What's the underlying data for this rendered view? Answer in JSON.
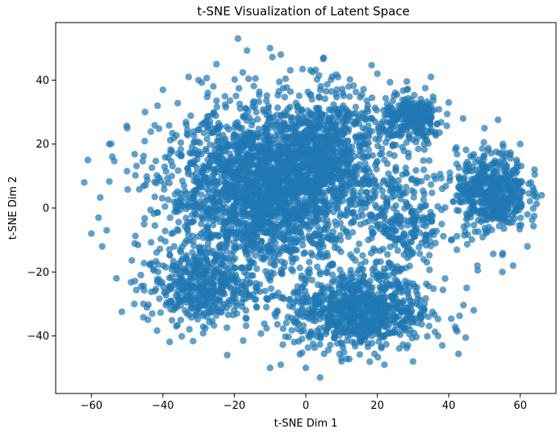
{
  "chart_data": {
    "type": "scatter",
    "title": "t-SNE Visualization of Latent Space",
    "xlabel": "t-SNE Dim 1",
    "ylabel": "t-SNE Dim 2",
    "xlim": [
      -70,
      70
    ],
    "ylim": [
      -58,
      58
    ],
    "xticks": [
      -60,
      -40,
      -20,
      0,
      20,
      40,
      60
    ],
    "yticks": [
      -40,
      -20,
      0,
      20,
      40
    ],
    "xtick_labels": [
      "−60",
      "−40",
      "−20",
      "0",
      "20",
      "40",
      "60"
    ],
    "ytick_labels": [
      "−40",
      "−20",
      "0",
      "20",
      "40"
    ],
    "grid": false,
    "legend": "none",
    "color": "#1f77b4",
    "alpha": 0.7,
    "point_count_estimate": 5000,
    "clusters": [
      {
        "center": [
          -12,
          5
        ],
        "spread": [
          20,
          18
        ],
        "weight": 0.42
      },
      {
        "center": [
          5,
          18
        ],
        "spread": [
          13,
          14
        ],
        "weight": 0.14
      },
      {
        "center": [
          15,
          -32
        ],
        "spread": [
          14,
          9
        ],
        "weight": 0.16
      },
      {
        "center": [
          -30,
          -25
        ],
        "spread": [
          11,
          8
        ],
        "weight": 0.08
      },
      {
        "center": [
          52,
          5
        ],
        "spread": [
          7,
          9
        ],
        "weight": 0.1
      },
      {
        "center": [
          30,
          28
        ],
        "spread": [
          6,
          5
        ],
        "weight": 0.05
      },
      {
        "center": [
          28,
          -5
        ],
        "spread": [
          9,
          12
        ],
        "weight": 0.05
      }
    ],
    "outliers": [
      [
        -19,
        53
      ],
      [
        -10,
        50
      ],
      [
        -7,
        48
      ],
      [
        35,
        41
      ],
      [
        20,
        42
      ],
      [
        5,
        47
      ],
      [
        -62,
        8
      ],
      [
        -61,
        15
      ],
      [
        -58,
        -3
      ],
      [
        -60,
        -8
      ],
      [
        66,
        4
      ],
      [
        64,
        12
      ],
      [
        60,
        20
      ],
      [
        62,
        -12
      ],
      [
        58,
        -18
      ],
      [
        55,
        -20
      ],
      [
        4,
        -53
      ],
      [
        -7,
        -49
      ],
      [
        22,
        -49
      ],
      [
        30,
        -48
      ],
      [
        -22,
        -46
      ],
      [
        -35,
        -35
      ],
      [
        45,
        -25
      ],
      [
        47,
        -32
      ],
      [
        40,
        33
      ],
      [
        44,
        28
      ],
      [
        50,
        25
      ],
      [
        -50,
        25
      ],
      [
        -45,
        30
      ],
      [
        -40,
        37
      ],
      [
        -30,
        40
      ],
      [
        -25,
        45
      ],
      [
        12,
        38
      ],
      [
        25,
        36
      ],
      [
        -55,
        20
      ],
      [
        -57,
        -12
      ],
      [
        -53,
        -22
      ],
      [
        -48,
        -30
      ],
      [
        -43,
        -33
      ],
      [
        -10,
        -50
      ],
      [
        0,
        -50
      ],
      [
        10,
        -48
      ],
      [
        37,
        -40
      ],
      [
        42,
        -38
      ],
      [
        48,
        -18
      ],
      [
        62,
        -2
      ],
      [
        63,
        8
      ],
      [
        59,
        15
      ]
    ]
  }
}
